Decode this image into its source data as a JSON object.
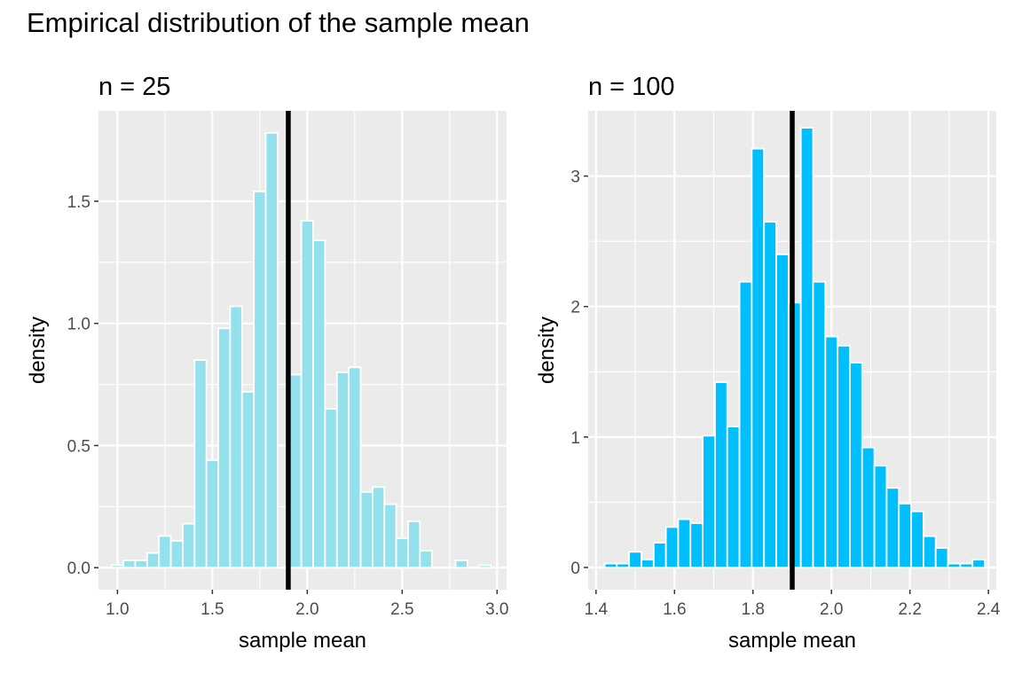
{
  "title": "Empirical distribution of the sample mean",
  "styles": {
    "panel_bg": "#ebebeb",
    "grid": "#ffffff",
    "bar_edge": "#ffffff",
    "vline": "#000000",
    "tick_text": "#4d4d4d",
    "axis_text": "#000000"
  },
  "chart_data": [
    {
      "type": "bar",
      "subtitle": "n = 25",
      "xlabel": "sample mean",
      "ylabel": "density",
      "xlim": [
        0.9,
        3.05
      ],
      "ylim": [
        -0.09,
        1.87
      ],
      "xticks": [
        1.0,
        1.5,
        2.0,
        2.5,
        3.0
      ],
      "xtick_labels": [
        "1.0",
        "1.5",
        "2.0",
        "2.5",
        "3.0"
      ],
      "yticks": [
        0,
        0.5,
        1.0,
        1.5
      ],
      "ytick_labels": [
        "0.0",
        "0.5",
        "1.0",
        "1.5"
      ],
      "grid": true,
      "bar_color": "#94e1ee",
      "bin_width": 0.0625,
      "bin_centers": [
        1.0,
        1.0625,
        1.125,
        1.1875,
        1.25,
        1.3125,
        1.375,
        1.4375,
        1.5,
        1.5625,
        1.625,
        1.6875,
        1.75,
        1.8125,
        1.875,
        1.9375,
        2.0,
        2.0625,
        2.125,
        2.1875,
        2.25,
        2.3125,
        2.375,
        2.4375,
        2.5,
        2.5625,
        2.625,
        2.6875,
        2.75,
        2.8125,
        2.875,
        2.9375
      ],
      "values": [
        0.01,
        0.03,
        0.03,
        0.06,
        0.13,
        0.11,
        0.18,
        0.85,
        0.44,
        0.98,
        1.07,
        0.72,
        1.54,
        1.78,
        0.0,
        0.79,
        1.42,
        1.34,
        0.65,
        0.8,
        0.82,
        0.31,
        0.33,
        0.26,
        0.12,
        0.19,
        0.07,
        0.0,
        0.0,
        0.03,
        0.0,
        0.01
      ],
      "vline": 1.9
    },
    {
      "type": "bar",
      "subtitle": "n = 100",
      "xlabel": "sample mean",
      "ylabel": "density",
      "xlim": [
        1.38,
        2.42
      ],
      "ylim": [
        -0.17,
        3.5
      ],
      "xticks": [
        1.4,
        1.6,
        1.8,
        2.0,
        2.2,
        2.4
      ],
      "xtick_labels": [
        "1.4",
        "1.6",
        "1.8",
        "2.0",
        "2.2",
        "2.4"
      ],
      "yticks": [
        0,
        1,
        2,
        3
      ],
      "ytick_labels": [
        "0",
        "1",
        "2",
        "3"
      ],
      "grid": true,
      "bar_color": "#00bfff",
      "bin_width": 0.03125,
      "bin_centers": [
        1.4375,
        1.46875,
        1.5,
        1.53125,
        1.5625,
        1.59375,
        1.625,
        1.65625,
        1.6875,
        1.71875,
        1.75,
        1.78125,
        1.8125,
        1.84375,
        1.875,
        1.90625,
        1.9375,
        1.96875,
        2.0,
        2.03125,
        2.0625,
        2.09375,
        2.125,
        2.15625,
        2.1875,
        2.21875,
        2.25,
        2.28125,
        2.3125,
        2.34375,
        2.375
      ],
      "values": [
        0.03,
        0.03,
        0.12,
        0.06,
        0.19,
        0.31,
        0.37,
        0.34,
        1.01,
        1.42,
        1.08,
        2.19,
        3.21,
        2.65,
        2.4,
        2.03,
        3.37,
        2.19,
        1.77,
        1.7,
        1.57,
        0.92,
        0.78,
        0.61,
        0.49,
        0.43,
        0.24,
        0.15,
        0.03,
        0.03,
        0.06
      ],
      "vline": 1.9
    }
  ]
}
